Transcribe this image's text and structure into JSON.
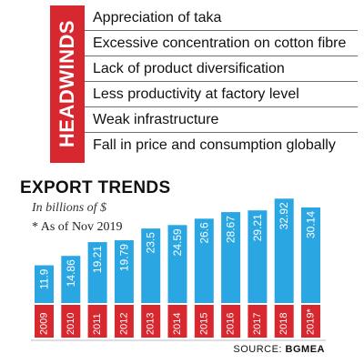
{
  "headwinds": {
    "label": "HEADWINDS",
    "items": [
      "Appreciation of taka",
      "Excessive concentration on cotton fibre",
      "Lack of product diversification",
      "Less productivity at factory level",
      "Weak infrastructure",
      "Fall in price and consumption globally"
    ]
  },
  "chart_data": {
    "type": "bar",
    "title": "EXPORT TRENDS",
    "subtitle": "In billions of $",
    "note": "* As of Nov 2019",
    "categories": [
      "2009",
      "2010",
      "2011",
      "2012",
      "2013",
      "2014",
      "2015",
      "2016",
      "2017",
      "2018",
      "2019*"
    ],
    "values": [
      11.9,
      14.86,
      19.21,
      19.79,
      23.5,
      24.59,
      26.6,
      28.67,
      29.21,
      32.92,
      30.14
    ],
    "value_labels": [
      "11.9",
      "14.86",
      "19.21",
      "19.79",
      "23.5",
      "24.59",
      "26.6",
      "28.67",
      "29.21",
      "32.92",
      "30.14"
    ],
    "ylim": [
      0,
      33
    ],
    "grid": false,
    "colors": {
      "bar": "#2aa7e3",
      "year_band": "#d7282f",
      "accent": "#d7282f"
    }
  },
  "source": {
    "prefix": "SOURCE:",
    "org": "BGMEA"
  }
}
